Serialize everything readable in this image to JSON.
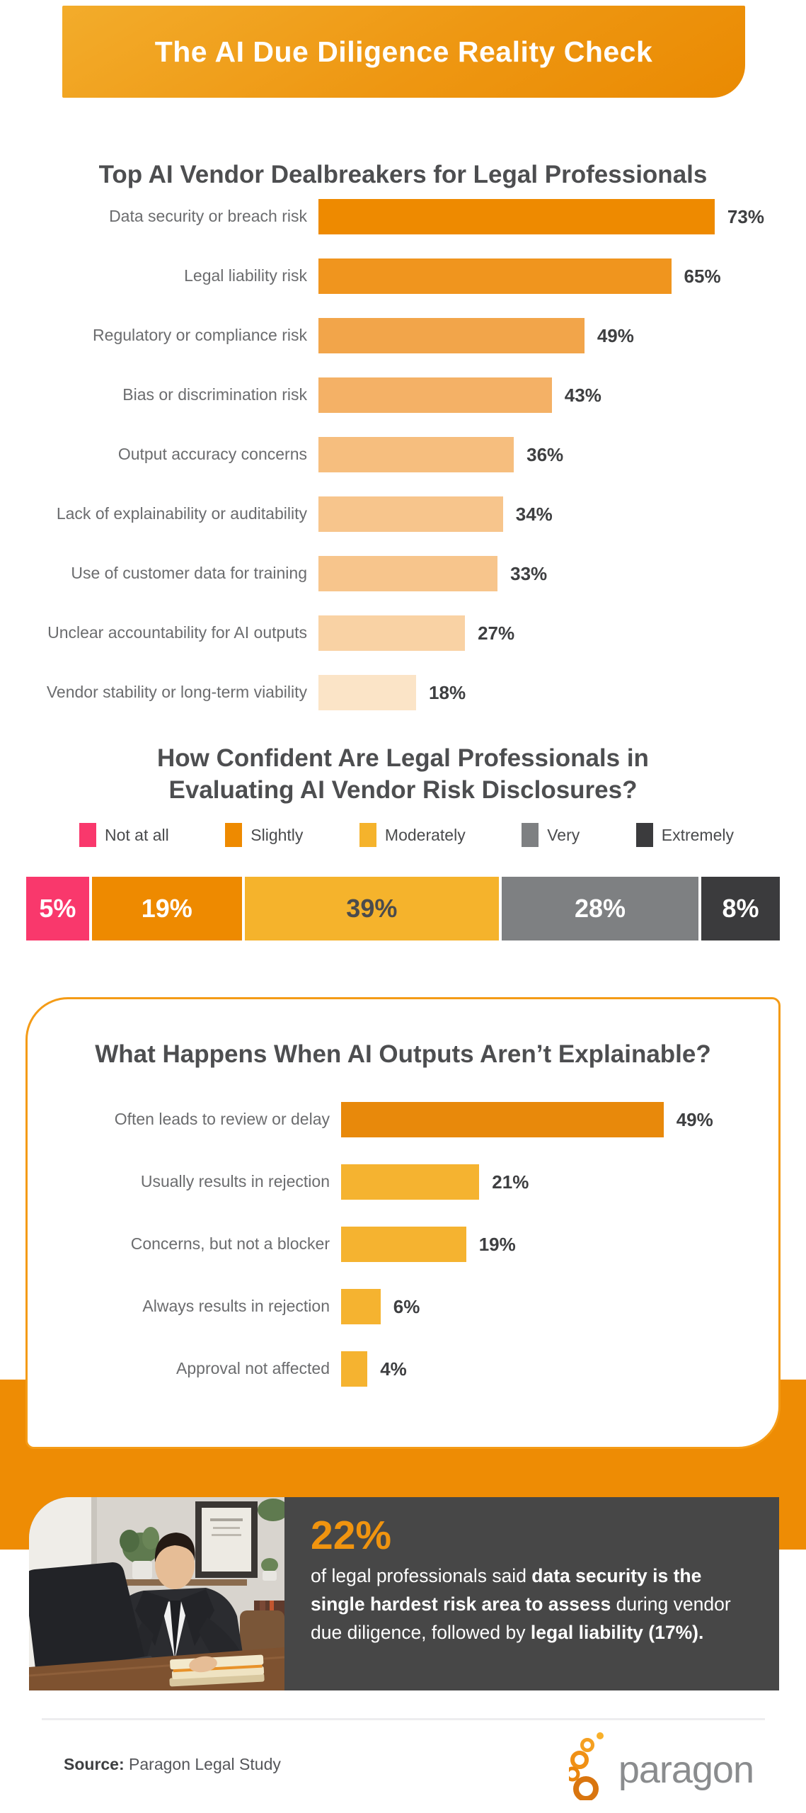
{
  "header": {
    "title": "The AI Due Diligence Reality Check"
  },
  "confidence_section": {
    "title_lines": [
      "How Confident Are Legal Professionals in",
      "Evaluating AI Vendor Risk Disclosures?"
    ]
  },
  "chart_data": [
    {
      "type": "bar",
      "orientation": "horizontal",
      "title": "Top AI Vendor Dealbreakers for Legal Professionals",
      "categories": [
        "Data security or breach risk",
        "Legal liability risk",
        "Regulatory or compliance risk",
        "Bias or discrimination risk",
        "Output accuracy concerns",
        "Lack of explainability or auditability",
        "Use of customer data for training",
        "Unclear accountability for AI outputs",
        "Vendor stability or long-term viability"
      ],
      "values": [
        73,
        65,
        49,
        43,
        36,
        34,
        33,
        27,
        18
      ],
      "value_suffix": "%",
      "xlim": [
        0,
        73
      ],
      "grid": false,
      "bar_colors": [
        "#EE8A00",
        "#F0951E",
        "#F2A54A",
        "#F4B166",
        "#F6BE7E",
        "#F7C58C",
        "#F7C58C",
        "#F9D2A4",
        "#FBE4C7"
      ]
    },
    {
      "type": "bar",
      "subtype": "stacked-horizontal",
      "title": "How Confident Are Legal Professionals in Evaluating AI Vendor Risk Disclosures?",
      "categories": [
        "Not at all",
        "Slightly",
        "Moderately",
        "Very",
        "Extremely"
      ],
      "values": [
        5,
        19,
        39,
        28,
        8
      ],
      "value_suffix": "%",
      "legend_position": "top",
      "segment_colors": [
        "#F9386C",
        "#EE8A00",
        "#F5B32C",
        "#7E8082",
        "#3B3B3D"
      ],
      "segment_text_colors": [
        "#ffffff",
        "#ffffff",
        "#4A4B4D",
        "#ffffff",
        "#ffffff"
      ]
    },
    {
      "type": "bar",
      "orientation": "horizontal",
      "title": "What Happens When AI Outputs Aren’t Explainable?",
      "categories": [
        "Often leads to review or delay",
        "Usually results in rejection",
        "Concerns, but not a blocker",
        "Always results in rejection",
        "Approval not affected"
      ],
      "values": [
        49,
        21,
        19,
        6,
        4
      ],
      "value_suffix": "%",
      "xlim": [
        0,
        49
      ],
      "grid": false,
      "bar_colors": [
        "#E8890B",
        "#F5B330",
        "#F5B330",
        "#F5B330",
        "#F5B330"
      ]
    }
  ],
  "stat_callout": {
    "value": "22%",
    "lines": [
      [
        {
          "t": "of legal professionals said ",
          "b": false
        },
        {
          "t": "data security is the",
          "b": true
        }
      ],
      [
        {
          "t": "single hardest risk area to assess",
          "b": true
        },
        {
          "t": " during vendor",
          "b": false
        }
      ],
      [
        {
          "t": "due diligence, followed by ",
          "b": false
        },
        {
          "t": "legal liability (17%).",
          "b": true
        }
      ]
    ]
  },
  "footer": {
    "source_label": "Source:",
    "source_text": " Paragon Legal Study",
    "logo_text": "paragon"
  },
  "colors": {
    "header_gradient_start": "#F3AC2B",
    "header_gradient_end": "#EA8A02",
    "section_title": "#4D4E50",
    "bar_label": "#6B6C6E",
    "bar_value": "#3E3F41",
    "card_border": "#F49B16",
    "orange_band": "#EE8C04",
    "stat_box": "#474747",
    "stat_value": "#F0940F",
    "logo_gray": "#8A8C8E"
  }
}
